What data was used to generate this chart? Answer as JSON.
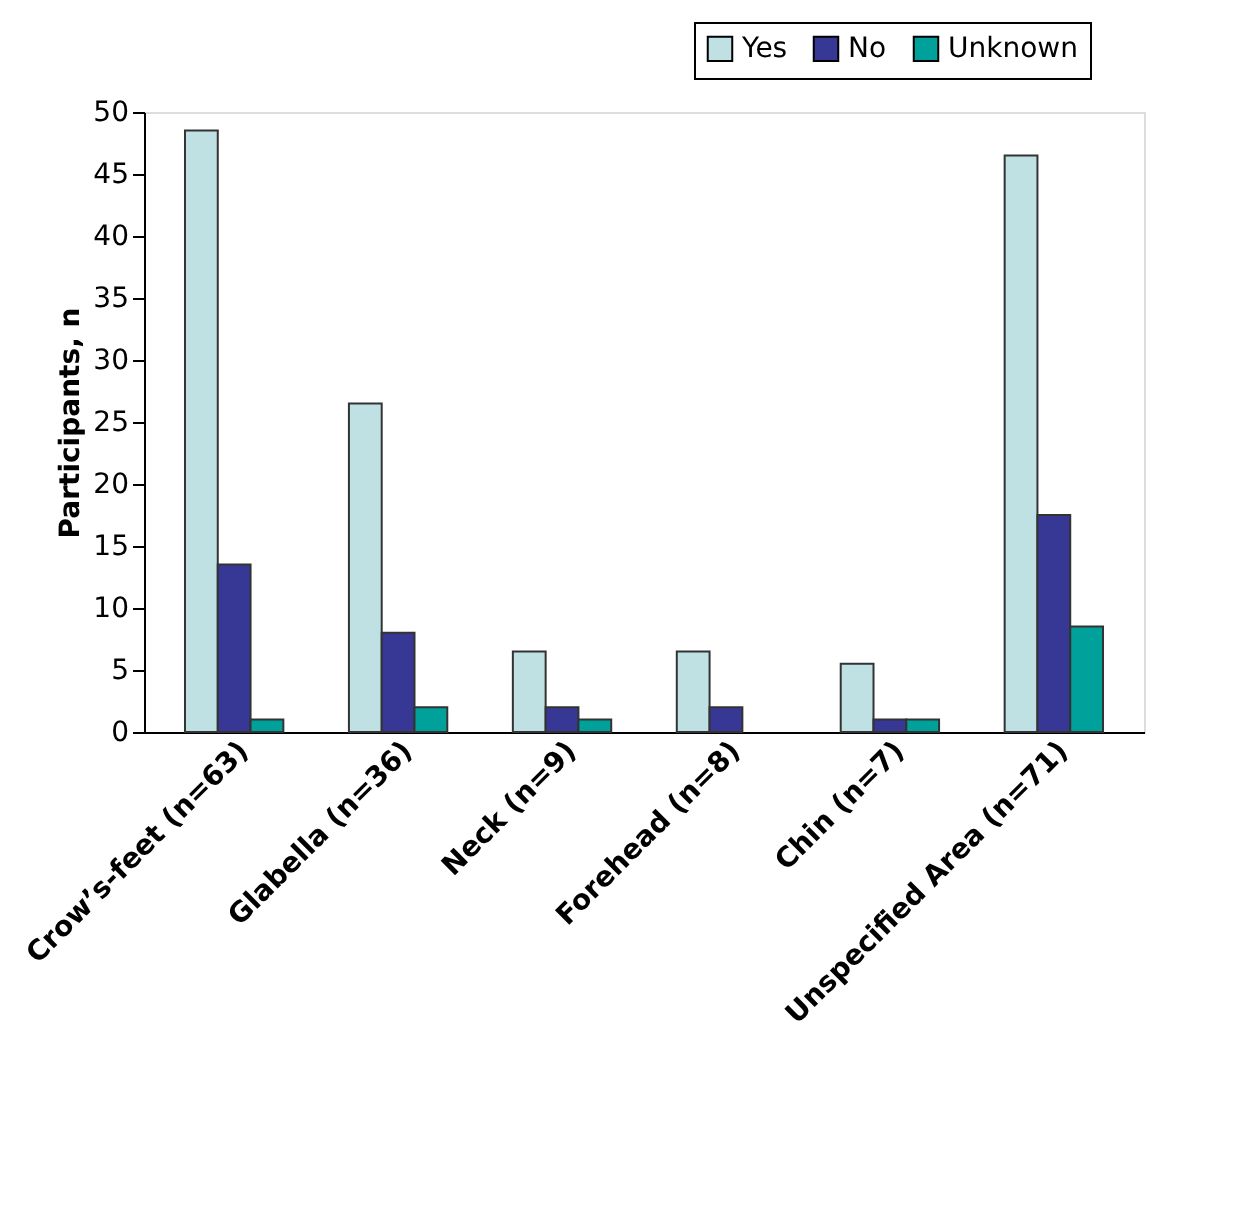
{
  "chart_data": {
    "type": "bar",
    "ylabel": "Participants, n",
    "categories": [
      "Crow’s-feet (n=63)",
      "Glabella (n=36)",
      "Neck (n=9)",
      "Forehead (n=8)",
      "Chin (n=7)",
      "Unspecified Area (n=71)"
    ],
    "series": [
      {
        "name": "Yes",
        "color": "#bfe1e3",
        "values": [
          48.5,
          26.5,
          6.5,
          6.5,
          5.5,
          46.5
        ]
      },
      {
        "name": "No",
        "color": "#373896",
        "values": [
          13.5,
          8,
          2,
          2,
          1,
          17.5
        ]
      },
      {
        "name": "Unknown",
        "color": "#00a19a",
        "values": [
          1,
          2,
          1,
          null,
          1,
          8.5
        ]
      }
    ],
    "ylim": [
      0,
      50
    ],
    "yticks": [
      0,
      5,
      10,
      15,
      20,
      25,
      30,
      35,
      40,
      45,
      50
    ],
    "grid": false,
    "legend": "top right"
  }
}
